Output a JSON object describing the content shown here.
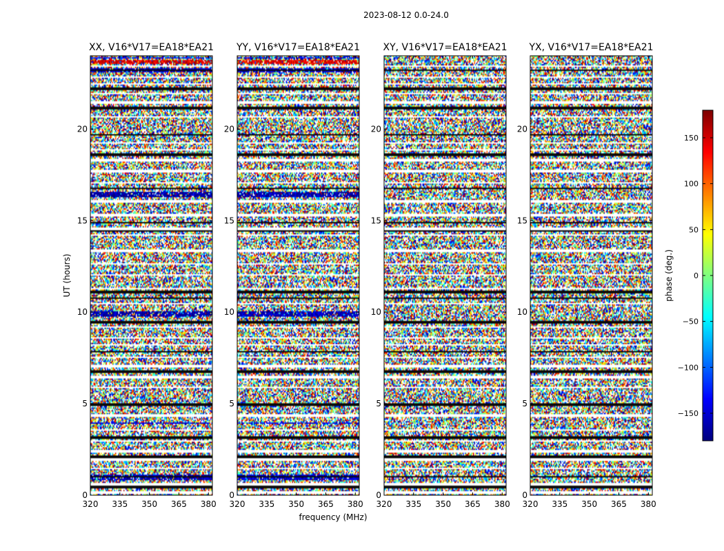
{
  "chart_data": {
    "type": "heatmap",
    "suptitle": "2023-08-12 0.0-24.0",
    "xlabel": "frequency (MHz)",
    "ylabel": "UT (hours)",
    "xlim": [
      320,
      382
    ],
    "ylim": [
      0,
      24
    ],
    "xticks": [
      320,
      335,
      350,
      365,
      380
    ],
    "yticks": [
      0,
      5,
      10,
      15,
      20
    ],
    "panels": [
      {
        "title": "XX, V16*V17=EA18*EA21",
        "pol": "XX",
        "coherent_rows": [
          [
            0.85,
            1.1,
            -160
          ],
          [
            3.9,
            4.0,
            -150
          ],
          [
            9.75,
            10.05,
            -165
          ],
          [
            16.3,
            16.6,
            -170
          ],
          [
            23.1,
            23.35,
            -160
          ],
          [
            23.55,
            23.75,
            150
          ],
          [
            23.85,
            23.95,
            -140
          ]
        ]
      },
      {
        "title": "YY, V16*V17=EA18*EA21",
        "pol": "YY",
        "coherent_rows": [
          [
            0.85,
            1.1,
            -155
          ],
          [
            3.9,
            4.0,
            -140
          ],
          [
            9.75,
            10.05,
            -160
          ],
          [
            16.3,
            16.6,
            -165
          ],
          [
            23.1,
            23.35,
            -155
          ],
          [
            23.55,
            23.75,
            145
          ],
          [
            23.85,
            23.95,
            -150
          ]
        ]
      },
      {
        "title": "XY, V16*V17=EA18*EA21",
        "pol": "XY",
        "coherent_rows": []
      },
      {
        "title": "YX, V16*V17=EA18*EA21",
        "pol": "YX",
        "coherent_rows": []
      }
    ],
    "flagged_rows_ut": [
      0.15,
      0.6,
      1.45,
      1.95,
      2.4,
      2.95,
      3.55,
      4.35,
      5.9,
      6.45,
      7.05,
      7.55,
      8.2,
      8.6,
      9.2,
      10.45,
      11.3,
      12.05,
      12.65,
      13.35,
      14.2,
      14.55,
      15.3,
      16.05,
      17.05,
      17.7,
      18.3,
      18.85,
      19.25,
      20.65,
      21.45,
      21.95,
      22.45,
      22.85,
      23.45
    ],
    "black_rows_ut": [
      0.45,
      1.0,
      2.1,
      3.15,
      4.95,
      6.75,
      7.85,
      9.45,
      10.75,
      11.1,
      14.45,
      14.9,
      16.75,
      18.6,
      19.7,
      21.15,
      22.2,
      23.2
    ],
    "colorbar": {
      "label": "phase (deg.)",
      "range": [
        -180,
        180
      ],
      "ticks": [
        150,
        100,
        50,
        0,
        -50,
        -100,
        -150
      ],
      "tick_labels": [
        "150",
        "100",
        "50",
        "0",
        "−50",
        "−100",
        "−150"
      ],
      "colormap": "jet"
    }
  }
}
